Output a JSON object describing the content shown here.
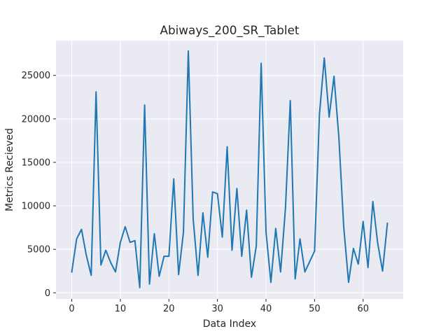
{
  "chart_data": {
    "type": "line",
    "title": "Abiways_200_SR_Tablet",
    "xlabel": "Data Index",
    "ylabel": "Metrics Recieved",
    "xlim": [
      -3.25,
      68.25
    ],
    "ylim": [
      -700,
      29000
    ],
    "xticks": [
      0,
      10,
      20,
      30,
      40,
      50,
      60
    ],
    "yticks": [
      0,
      5000,
      10000,
      15000,
      20000,
      25000
    ],
    "grid": true,
    "background_color": "#eaeaf2",
    "series": [
      {
        "color": "#1f77b4",
        "x": [
          0,
          1,
          2,
          3,
          4,
          5,
          6,
          7,
          8,
          9,
          10,
          11,
          12,
          13,
          14,
          15,
          16,
          17,
          18,
          19,
          20,
          21,
          22,
          23,
          24,
          25,
          26,
          27,
          28,
          29,
          30,
          31,
          32,
          33,
          34,
          35,
          36,
          37,
          38,
          39,
          40,
          41,
          42,
          43,
          44,
          45,
          46,
          47,
          48,
          49,
          50,
          51,
          52,
          53,
          54,
          55,
          56,
          57,
          58,
          59,
          60,
          61,
          62,
          63,
          64,
          65
        ],
        "y": [
          2400,
          6200,
          7300,
          4300,
          2000,
          23100,
          3200,
          4900,
          3500,
          2400,
          5800,
          7600,
          5800,
          6000,
          600,
          21600,
          1000,
          6800,
          1900,
          4200,
          4200,
          13100,
          2100,
          7000,
          27800,
          8500,
          2000,
          9200,
          4100,
          11600,
          11400,
          6400,
          16800,
          4900,
          12000,
          4200,
          9500,
          1800,
          5400,
          26400,
          7000,
          1200,
          7400,
          2400,
          9700,
          22100,
          1600,
          6200,
          2400,
          3600,
          4800,
          20500,
          27000,
          20200,
          24900,
          17900,
          7600,
          1200,
          5100,
          3300,
          8200,
          2900,
          10500,
          5700,
          2500,
          8000
        ]
      }
    ]
  }
}
